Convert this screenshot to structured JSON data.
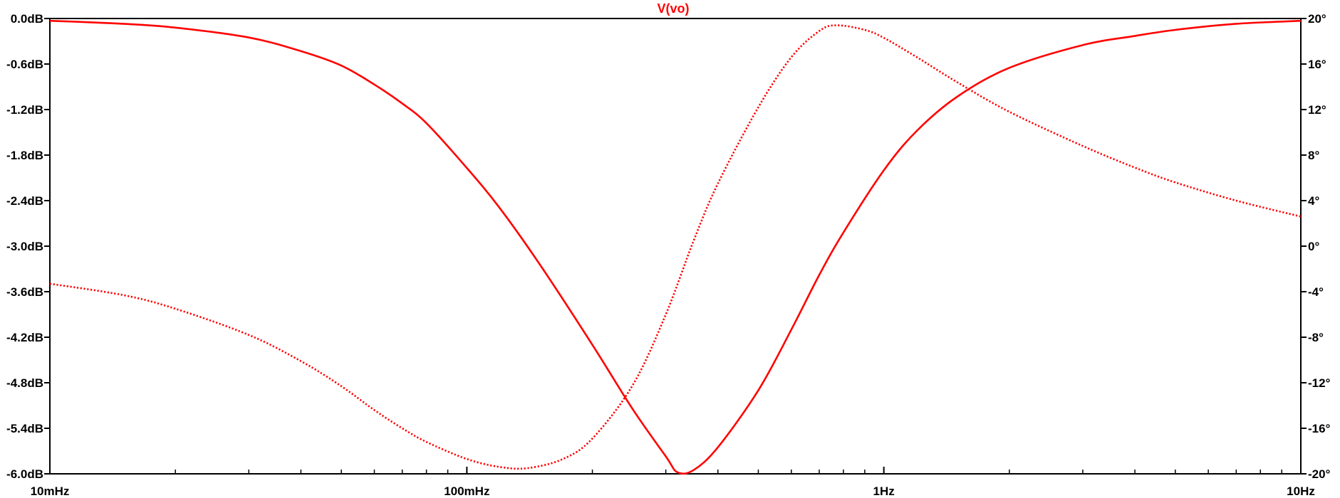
{
  "chart_data": {
    "type": "line",
    "title": "V(vo)",
    "x_scale": "log",
    "x_range_hz": [
      0.01,
      10
    ],
    "x_ticks": [
      {
        "value": 0.01,
        "label": "10mHz"
      },
      {
        "value": 0.1,
        "label": "100mHz"
      },
      {
        "value": 1,
        "label": "1Hz"
      },
      {
        "value": 10,
        "label": "10Hz"
      }
    ],
    "y_left": {
      "unit": "dB",
      "range": [
        -6.0,
        0.0
      ],
      "ticks": [
        "0.0dB",
        "-0.6dB",
        "-1.2dB",
        "-1.8dB",
        "-2.4dB",
        "-3.0dB",
        "-3.6dB",
        "-4.2dB",
        "-4.8dB",
        "-5.4dB",
        "-6.0dB"
      ]
    },
    "y_right": {
      "unit": "°",
      "range": [
        -20,
        20
      ],
      "ticks": [
        "20°",
        "16°",
        "12°",
        "8°",
        "4°",
        "0°",
        "-4°",
        "-8°",
        "-12°",
        "-16°",
        "-20°"
      ]
    },
    "grid": false,
    "series": [
      {
        "name": "V(vo)",
        "style": "solid",
        "axis": "left",
        "color": "#ff0000",
        "points": [
          [
            0.01,
            -0.03
          ],
          [
            0.015,
            -0.07
          ],
          [
            0.02,
            -0.12
          ],
          [
            0.03,
            -0.25
          ],
          [
            0.04,
            -0.43
          ],
          [
            0.05,
            -0.62
          ],
          [
            0.06,
            -0.87
          ],
          [
            0.07,
            -1.12
          ],
          [
            0.08,
            -1.38
          ],
          [
            0.1,
            -1.97
          ],
          [
            0.12,
            -2.5
          ],
          [
            0.15,
            -3.25
          ],
          [
            0.2,
            -4.3
          ],
          [
            0.25,
            -5.15
          ],
          [
            0.3,
            -5.77
          ],
          [
            0.32,
            -5.98
          ],
          [
            0.35,
            -5.95
          ],
          [
            0.4,
            -5.65
          ],
          [
            0.5,
            -4.9
          ],
          [
            0.6,
            -4.1
          ],
          [
            0.7,
            -3.38
          ],
          [
            0.8,
            -2.82
          ],
          [
            1.0,
            -2.0
          ],
          [
            1.2,
            -1.48
          ],
          [
            1.5,
            -1.03
          ],
          [
            2.0,
            -0.65
          ],
          [
            3.0,
            -0.35
          ],
          [
            4.0,
            -0.23
          ],
          [
            5.0,
            -0.15
          ],
          [
            7.0,
            -0.07
          ],
          [
            10.0,
            -0.03
          ]
        ]
      },
      {
        "name": "V(vo)",
        "style": "dotted",
        "axis": "right",
        "color": "#ff0000",
        "points": [
          [
            0.01,
            -3.3
          ],
          [
            0.015,
            -4.3
          ],
          [
            0.02,
            -5.5
          ],
          [
            0.03,
            -7.8
          ],
          [
            0.04,
            -10.1
          ],
          [
            0.05,
            -12.3
          ],
          [
            0.06,
            -14.4
          ],
          [
            0.07,
            -16.0
          ],
          [
            0.08,
            -17.2
          ],
          [
            0.1,
            -18.7
          ],
          [
            0.12,
            -19.4
          ],
          [
            0.14,
            -19.5
          ],
          [
            0.17,
            -18.7
          ],
          [
            0.2,
            -16.9
          ],
          [
            0.25,
            -12.2
          ],
          [
            0.3,
            -6.0
          ],
          [
            0.35,
            0.5
          ],
          [
            0.4,
            5.5
          ],
          [
            0.5,
            12.2
          ],
          [
            0.6,
            16.6
          ],
          [
            0.7,
            18.9
          ],
          [
            0.77,
            19.4
          ],
          [
            0.9,
            19.0
          ],
          [
            1.0,
            18.3
          ],
          [
            1.2,
            16.6
          ],
          [
            1.5,
            14.4
          ],
          [
            2.0,
            11.8
          ],
          [
            3.0,
            8.8
          ],
          [
            4.0,
            6.9
          ],
          [
            5.0,
            5.6
          ],
          [
            7.0,
            4.0
          ],
          [
            10.0,
            2.6
          ]
        ]
      }
    ]
  }
}
